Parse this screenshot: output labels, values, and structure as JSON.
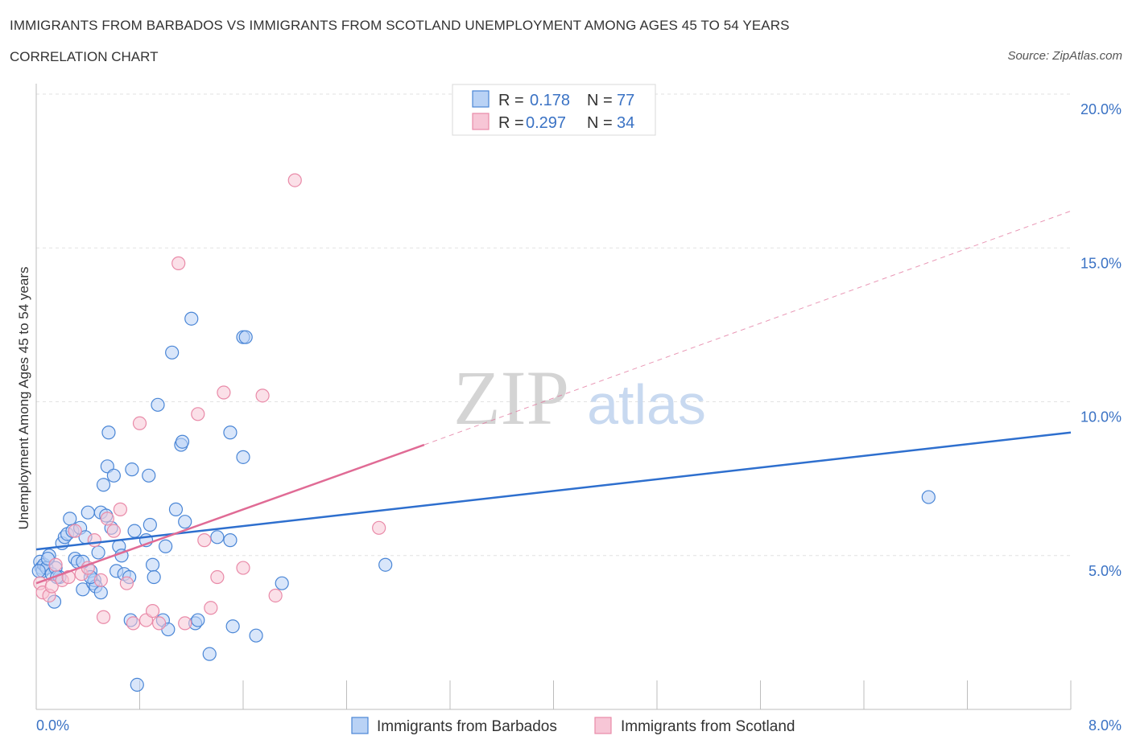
{
  "header": {
    "title": "IMMIGRANTS FROM BARBADOS VS IMMIGRANTS FROM SCOTLAND UNEMPLOYMENT AMONG AGES 45 TO 54 YEARS",
    "subtitle": "CORRELATION CHART",
    "source": "Source: ZipAtlas.com"
  },
  "watermark": {
    "zip": "ZIP",
    "atlas": "atlas"
  },
  "colors": {
    "barbados_fill": "#b9d2f5",
    "barbados_stroke": "#4a86d6",
    "barbados_line": "#2e6fce",
    "scotland_fill": "#f7c6d6",
    "scotland_stroke": "#e98aa8",
    "scotland_line": "#e06b95",
    "axis_label": "#3a72c4"
  },
  "legend": {
    "rows": [
      {
        "r_label": "R =",
        "r_value": "0.178",
        "n_label": "N =",
        "n_value": "77"
      },
      {
        "r_label": "R =",
        "r_value": "0.297",
        "n_label": "N =",
        "n_value": "34"
      }
    ]
  },
  "chart_data": {
    "type": "scatter",
    "title": "IMMIGRANTS FROM BARBADOS VS IMMIGRANTS FROM SCOTLAND UNEMPLOYMENT AMONG AGES 45 TO 54 YEARS",
    "xlabel": "",
    "ylabel": "Unemployment Among Ages 45 to 54 years",
    "xlim": [
      0,
      8
    ],
    "ylim": [
      0,
      20
    ],
    "x_tick_labels": [
      "0.0%",
      "8.0%"
    ],
    "y_ticks": [
      5,
      10,
      15,
      20
    ],
    "y_tick_labels": [
      "5.0%",
      "10.0%",
      "15.0%",
      "20.0%"
    ],
    "grid": true,
    "legend_position": "top-center",
    "series": [
      {
        "name": "Immigrants from Barbados",
        "R": 0.178,
        "N": 77,
        "trend": {
          "x": [
            0,
            8
          ],
          "y": [
            5.2,
            9.0
          ],
          "style": "solid"
        },
        "points": [
          [
            0.03,
            4.8
          ],
          [
            0.04,
            4.6
          ],
          [
            0.05,
            4.5
          ],
          [
            0.06,
            4.7
          ],
          [
            0.08,
            4.6
          ],
          [
            0.1,
            5.0
          ],
          [
            0.12,
            4.4
          ],
          [
            0.14,
            3.5
          ],
          [
            0.15,
            4.6
          ],
          [
            0.18,
            4.3
          ],
          [
            0.2,
            5.4
          ],
          [
            0.22,
            5.6
          ],
          [
            0.24,
            5.7
          ],
          [
            0.26,
            6.2
          ],
          [
            0.28,
            5.8
          ],
          [
            0.3,
            4.9
          ],
          [
            0.32,
            4.8
          ],
          [
            0.34,
            5.9
          ],
          [
            0.36,
            3.9
          ],
          [
            0.38,
            5.6
          ],
          [
            0.4,
            6.4
          ],
          [
            0.42,
            4.5
          ],
          [
            0.44,
            4.1
          ],
          [
            0.45,
            4.2
          ],
          [
            0.46,
            4.0
          ],
          [
            0.48,
            5.1
          ],
          [
            0.5,
            3.8
          ],
          [
            0.5,
            6.4
          ],
          [
            0.52,
            7.3
          ],
          [
            0.54,
            6.3
          ],
          [
            0.55,
            7.9
          ],
          [
            0.56,
            9.0
          ],
          [
            0.58,
            5.9
          ],
          [
            0.6,
            7.6
          ],
          [
            0.62,
            4.5
          ],
          [
            0.64,
            5.3
          ],
          [
            0.66,
            5.0
          ],
          [
            0.68,
            4.4
          ],
          [
            0.72,
            4.3
          ],
          [
            0.73,
            2.9
          ],
          [
            0.74,
            7.8
          ],
          [
            0.76,
            5.8
          ],
          [
            0.78,
            0.8
          ],
          [
            0.85,
            5.5
          ],
          [
            0.87,
            7.6
          ],
          [
            0.88,
            6.0
          ],
          [
            0.9,
            4.7
          ],
          [
            0.91,
            4.3
          ],
          [
            0.94,
            9.9
          ],
          [
            0.98,
            2.9
          ],
          [
            1.0,
            5.3
          ],
          [
            1.02,
            2.6
          ],
          [
            1.05,
            11.6
          ],
          [
            1.08,
            6.5
          ],
          [
            1.12,
            8.6
          ],
          [
            1.13,
            8.7
          ],
          [
            1.15,
            6.1
          ],
          [
            1.2,
            12.7
          ],
          [
            1.23,
            2.8
          ],
          [
            1.25,
            2.9
          ],
          [
            1.34,
            1.8
          ],
          [
            1.4,
            5.6
          ],
          [
            1.5,
            5.5
          ],
          [
            1.5,
            9.0
          ],
          [
            1.52,
            2.7
          ],
          [
            1.6,
            8.2
          ],
          [
            1.6,
            12.1
          ],
          [
            1.62,
            12.1
          ],
          [
            1.7,
            2.4
          ],
          [
            1.9,
            4.1
          ],
          [
            2.7,
            4.7
          ],
          [
            6.9,
            6.9
          ],
          [
            0.02,
            4.5
          ],
          [
            0.09,
            4.9
          ],
          [
            0.16,
            4.3
          ],
          [
            0.36,
            4.8
          ],
          [
            0.42,
            4.3
          ]
        ]
      },
      {
        "name": "Immigrants from Scotland",
        "R": 0.297,
        "N": 34,
        "trend": {
          "x": [
            0,
            3.0
          ],
          "y": [
            4.1,
            8.6
          ],
          "style": "solid",
          "extension": {
            "x": [
              3.0,
              8.0
            ],
            "y": [
              8.6,
              16.2
            ],
            "style": "dashed"
          }
        },
        "points": [
          [
            0.03,
            4.1
          ],
          [
            0.05,
            3.8
          ],
          [
            0.1,
            3.7
          ],
          [
            0.12,
            4.0
          ],
          [
            0.15,
            4.7
          ],
          [
            0.2,
            4.2
          ],
          [
            0.25,
            4.3
          ],
          [
            0.3,
            5.8
          ],
          [
            0.35,
            4.4
          ],
          [
            0.4,
            4.6
          ],
          [
            0.45,
            5.5
          ],
          [
            0.5,
            4.2
          ],
          [
            0.52,
            3.0
          ],
          [
            0.55,
            6.2
          ],
          [
            0.6,
            5.8
          ],
          [
            0.65,
            6.5
          ],
          [
            0.7,
            4.1
          ],
          [
            0.75,
            2.8
          ],
          [
            0.8,
            9.3
          ],
          [
            0.85,
            2.9
          ],
          [
            0.9,
            3.2
          ],
          [
            0.95,
            2.8
          ],
          [
            1.1,
            14.5
          ],
          [
            1.15,
            2.8
          ],
          [
            1.25,
            9.6
          ],
          [
            1.3,
            5.5
          ],
          [
            1.35,
            3.3
          ],
          [
            1.4,
            4.3
          ],
          [
            1.45,
            10.3
          ],
          [
            1.6,
            4.6
          ],
          [
            1.75,
            10.2
          ],
          [
            1.85,
            3.7
          ],
          [
            2.0,
            17.2
          ],
          [
            2.65,
            5.9
          ]
        ]
      }
    ]
  },
  "bottom_legend": {
    "items": [
      {
        "label": "Immigrants from Barbados"
      },
      {
        "label": "Immigrants from Scotland"
      }
    ]
  }
}
